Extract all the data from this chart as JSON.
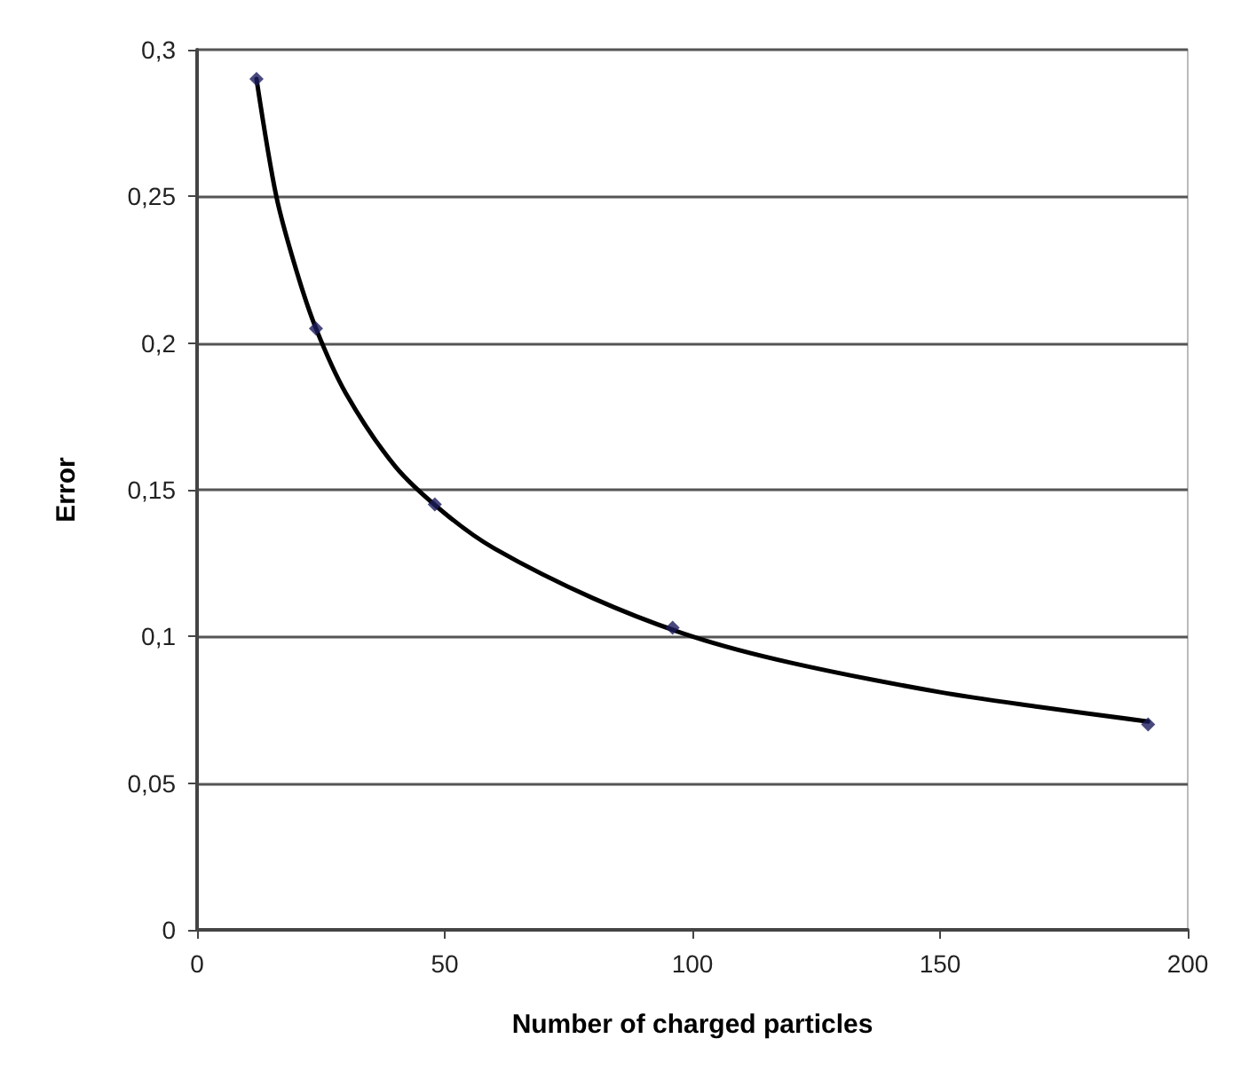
{
  "chart_data": {
    "type": "scatter",
    "xlabel": "Number of charged particles",
    "ylabel": "Error",
    "xlim": [
      0,
      200
    ],
    "xticks": [
      0,
      50,
      100,
      150,
      200
    ],
    "ylim": [
      0,
      0.3
    ],
    "yticks": [
      {
        "value": 0,
        "label": "0"
      },
      {
        "value": 0.05,
        "label": "0,05"
      },
      {
        "value": 0.1,
        "label": "0,1"
      },
      {
        "value": 0.15,
        "label": "0,15"
      },
      {
        "value": 0.2,
        "label": "0,2"
      },
      {
        "value": 0.25,
        "label": "0,25"
      },
      {
        "value": 0.3,
        "label": "0,3"
      }
    ],
    "grid": "y",
    "marker": "diamond",
    "series": [
      {
        "color": "#1c1c5c",
        "x": [
          12,
          24,
          48,
          96,
          192
        ],
        "values": [
          0.29,
          0.205,
          0.145,
          0.103,
          0.07
        ]
      },
      {
        "type": "line",
        "color": "#000000",
        "marker": "none",
        "line_style": "solid",
        "x": [
          12,
          16,
          20,
          24,
          30,
          40,
          50,
          60,
          80,
          100,
          120,
          150,
          170,
          192
        ],
        "values": [
          0.29,
          0.25,
          0.225,
          0.205,
          0.183,
          0.158,
          0.142,
          0.13,
          0.113,
          0.1,
          0.091,
          0.081,
          0.076,
          0.071
        ]
      }
    ]
  }
}
